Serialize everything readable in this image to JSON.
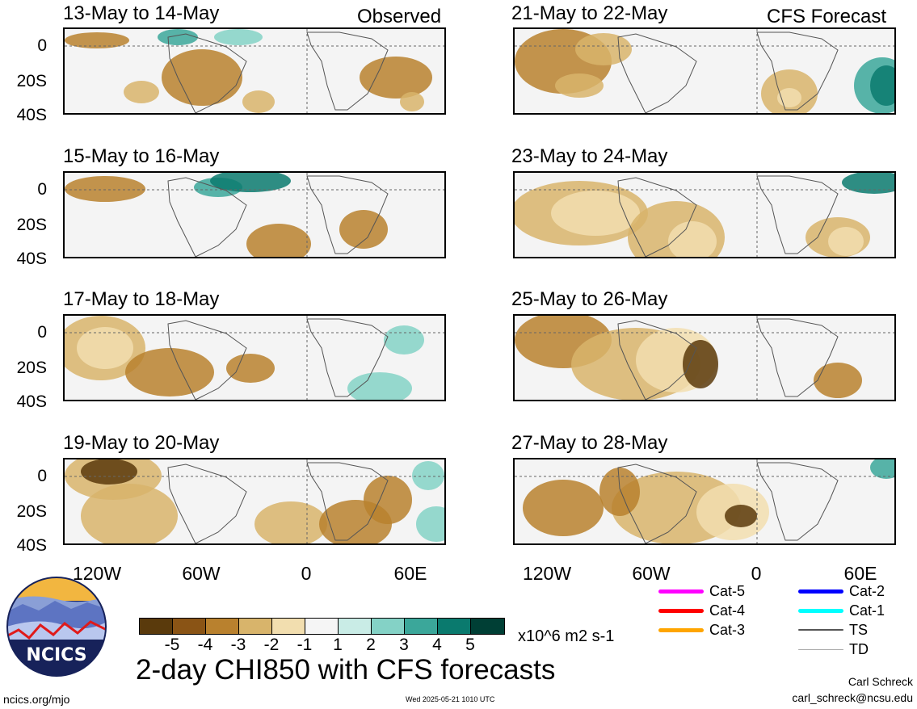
{
  "panels": [
    {
      "title": "13-May to 14-May",
      "tag": "Observed"
    },
    {
      "title": "15-May to 16-May",
      "tag": ""
    },
    {
      "title": "17-May to 18-May",
      "tag": ""
    },
    {
      "title": "19-May to 20-May",
      "tag": ""
    },
    {
      "title": "21-May to 22-May",
      "tag": "CFS Forecast"
    },
    {
      "title": "23-May to 24-May",
      "tag": ""
    },
    {
      "title": "25-May to 26-May",
      "tag": ""
    },
    {
      "title": "27-May to 28-May",
      "tag": ""
    }
  ],
  "axes": {
    "lat_labels": [
      "0",
      "20S",
      "40S"
    ],
    "lon_labels": [
      "120W",
      "60W",
      "0",
      "60E"
    ]
  },
  "colorbar": {
    "colors": [
      "#5a3a0c",
      "#8a5415",
      "#b9812e",
      "#d8b46b",
      "#f2deaf",
      "#f5f5f5",
      "#c9ece6",
      "#84d2c6",
      "#3ba79a",
      "#0a7a6e",
      "#003f35"
    ],
    "ticks": [
      "-5",
      "-4",
      "-3",
      "-2",
      "-1",
      "1",
      "2",
      "3",
      "4",
      "5"
    ],
    "units": "x10^6 m2 s-1"
  },
  "title": "2-day CHI850 with CFS forecasts",
  "legend": {
    "items": [
      {
        "label": "Cat-5",
        "color": "#ff00ff"
      },
      {
        "label": "Cat-4",
        "color": "#ff0000"
      },
      {
        "label": "Cat-3",
        "color": "#ffa500"
      },
      {
        "label": "Cat-2",
        "color": "#0000ff"
      },
      {
        "label": "Cat-1",
        "color": "#00ffff"
      },
      {
        "label": "TS",
        "color": "#555555"
      },
      {
        "label": "TD",
        "color": "#aaaaaa"
      }
    ]
  },
  "footer": {
    "website": "ncics.org/mjo",
    "timestamp": "Wed 2025-05-21 1010 UTC",
    "author": "Carl Schreck",
    "email": "carl_schreck@ncsu.edu"
  },
  "logo": {
    "text": "NCICS"
  }
}
